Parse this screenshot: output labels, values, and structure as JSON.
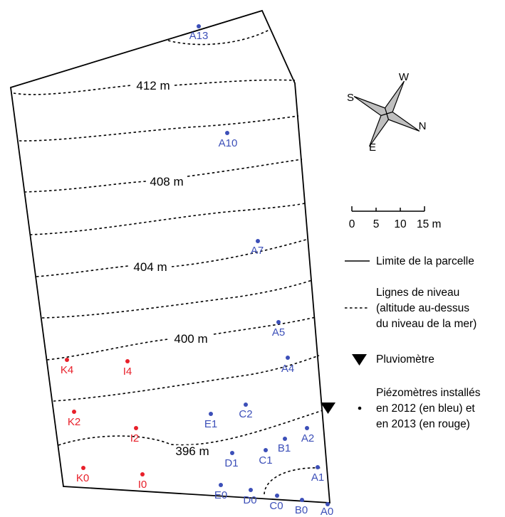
{
  "colors": {
    "piezometer_2012": "#3c4fb8",
    "piezometer_2013": "#e8202a",
    "boundary": "#000000",
    "compass_fill": "#bfbfbf"
  },
  "contour_labels": [
    "412 m",
    "408 m",
    "404 m",
    "400 m",
    "396 m"
  ],
  "compass": {
    "north": "N",
    "south": "S",
    "east": "E",
    "west": "W"
  },
  "scale_bar": {
    "ticks": [
      "0",
      "5",
      "10",
      "15 m"
    ]
  },
  "legend": {
    "boundary": "Limite de la parcelle",
    "contour_line1": "Lignes de niveau",
    "contour_line2": "(altitude au-dessus",
    "contour_line3": "du niveau de la mer)",
    "rain_gauge": "Pluviomètre",
    "piezo_line1": "Piézomètres installés",
    "piezo_line2": "en 2012 (en bleu) et",
    "piezo_line3": "en 2013 (en rouge)"
  },
  "piezometers_2012": [
    "A13",
    "A10",
    "A7",
    "A5",
    "A4",
    "A2",
    "A1",
    "A0",
    "B1",
    "B0",
    "C2",
    "C1",
    "C0",
    "D1",
    "D0",
    "E1",
    "E0"
  ],
  "piezometers_2013": [
    "K4",
    "I4",
    "K2",
    "I2",
    "K0",
    "I0"
  ]
}
